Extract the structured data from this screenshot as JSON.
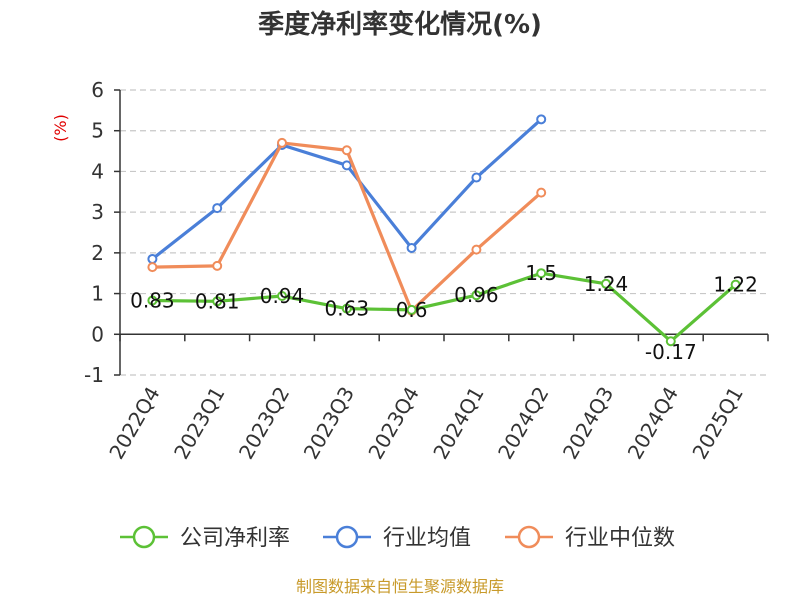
{
  "chart_data": {
    "type": "line",
    "title": "季度净利率变化情况(%)",
    "ylabel": "(%)",
    "ylim": [
      -1,
      6
    ],
    "yticks": [
      -1,
      0,
      1,
      2,
      3,
      4,
      5,
      6
    ],
    "grid": "horizontal dashed",
    "legend_position": "bottom",
    "categories": [
      "2022Q4",
      "2023Q1",
      "2023Q2",
      "2023Q3",
      "2023Q4",
      "2024Q1",
      "2024Q2",
      "2024Q3",
      "2024Q4",
      "2025Q1"
    ],
    "series": [
      {
        "name": "公司净利率",
        "color": "#5cc136",
        "values": [
          0.83,
          0.81,
          0.94,
          0.63,
          0.6,
          0.96,
          1.5,
          1.24,
          -0.17,
          1.22
        ],
        "labels": [
          "0.83",
          "0.81",
          "0.94",
          "0.63",
          "0.6",
          "0.96",
          "1.5",
          "1.24",
          "-0.17",
          "1.22"
        ],
        "show_labels": true
      },
      {
        "name": "行业均值",
        "color": "#4a7fd8",
        "values": [
          1.85,
          3.1,
          4.65,
          4.15,
          2.12,
          3.85,
          5.28,
          null,
          null,
          null
        ],
        "show_labels": false
      },
      {
        "name": "行业中位数",
        "color": "#f08c5a",
        "values": [
          1.65,
          1.68,
          4.7,
          4.52,
          0.58,
          2.08,
          3.48,
          null,
          null,
          null
        ],
        "show_labels": false
      }
    ],
    "source": "制图数据来自恒生聚源数据库"
  }
}
